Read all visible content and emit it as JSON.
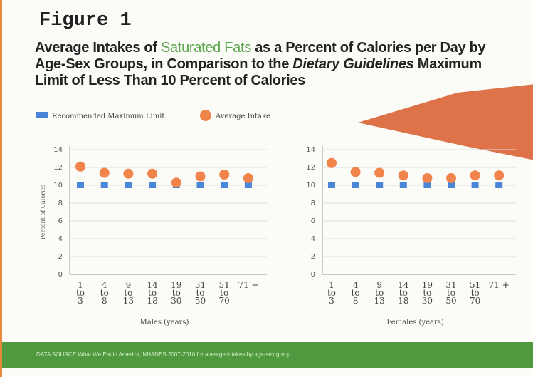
{
  "figure_label": "Figure 1",
  "headline": [
    "Average Intakes of ",
    "Saturated Fats",
    " as a Percent of Calories per Day by Age-Sex Groups, in Comparison to the ",
    "Dietary Guidelines",
    " Maximum Limit of Less Than 10 Percent of Calories"
  ],
  "footer": "DATA SOURCE What We Eat in America, NHANES 2007-2010 for average intakes by age-sex group.",
  "chart_data": [
    {
      "type": "scatter",
      "x_label": "Males (years)",
      "y_label": "Percent of Calories",
      "categories": [
        "1\nto\n3",
        "4\nto\n8",
        "9\nto\n13",
        "14\nto\n18",
        "19\nto\n30",
        "31\nto\n50",
        "51\nto\n70",
        "71 +"
      ],
      "series": [
        {
          "name": "Recommended Maximum Limit",
          "color": "#4a86d8",
          "marker": "square",
          "values": [
            10,
            10,
            10,
            10,
            10,
            10,
            10,
            10
          ]
        },
        {
          "name": "Average Intake",
          "color": "#f0844a",
          "marker": "circle",
          "values": [
            12.1,
            11.4,
            11.3,
            11.3,
            10.3,
            11.0,
            11.2,
            10.8
          ]
        }
      ],
      "ylim": [
        0,
        14
      ],
      "yticks": [
        0,
        2,
        4,
        6,
        8,
        10,
        12,
        14
      ],
      "grid": true
    },
    {
      "type": "scatter",
      "x_label": "Females (years)",
      "categories": [
        "1\nto\n3",
        "4\nto\n8",
        "9\nto\n13",
        "14\nto\n18",
        "19\nto\n30",
        "31\nto\n50",
        "51\nto\n70",
        "71 +"
      ],
      "series": [
        {
          "name": "Recommended Maximum Limit",
          "color": "#4a86d8",
          "marker": "square",
          "values": [
            10,
            10,
            10,
            10,
            10,
            10,
            10,
            10
          ]
        },
        {
          "name": "Average Intake",
          "color": "#f0844a",
          "marker": "circle",
          "values": [
            12.5,
            11.5,
            11.4,
            11.1,
            10.8,
            10.8,
            11.1,
            11.1
          ]
        }
      ],
      "ylim": [
        0,
        14
      ],
      "yticks": [
        0,
        2,
        4,
        6,
        8,
        10,
        12,
        14
      ],
      "grid": true
    }
  ]
}
